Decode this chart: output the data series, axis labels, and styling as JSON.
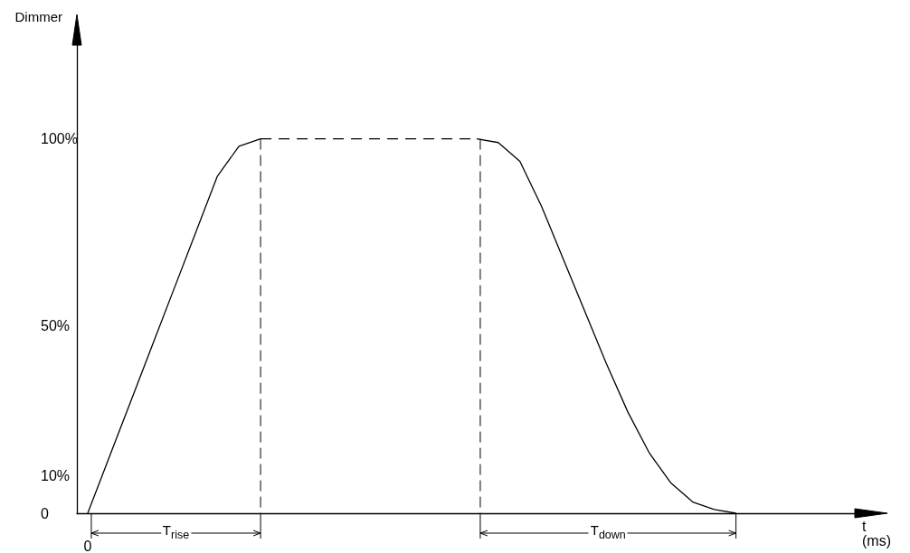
{
  "chart_data": {
    "type": "line",
    "xlabel": "t\n(ms)",
    "ylabel": "Dimmer",
    "categories": [
      "0",
      null,
      null,
      null,
      null,
      null,
      null,
      null,
      null,
      null,
      null,
      null,
      null,
      null,
      null,
      null,
      null,
      null,
      null,
      null,
      null,
      null,
      null,
      null,
      null,
      null,
      null,
      null,
      null,
      null,
      null,
      null,
      null,
      null,
      null,
      null
    ],
    "series": [
      {
        "color": "#000000",
        "line_style": "solid",
        "values": [
          0,
          15,
          30,
          45,
          60,
          75,
          90,
          98,
          100,
          null,
          null,
          null,
          null,
          null,
          null,
          null,
          null,
          null,
          null,
          null,
          null,
          null,
          null,
          null,
          null,
          null,
          null,
          null,
          null,
          null,
          null,
          null,
          null,
          null,
          null,
          null
        ]
      },
      {
        "color": "#000000",
        "line_style": "dashed",
        "values": [
          null,
          null,
          null,
          null,
          null,
          null,
          null,
          null,
          100,
          100,
          100,
          100,
          100,
          100,
          100,
          100,
          100,
          100,
          100,
          null,
          null,
          null,
          null,
          null,
          null,
          null,
          null,
          null,
          null,
          null,
          null,
          null,
          null,
          null,
          null,
          null
        ]
      },
      {
        "color": "#000000",
        "line_style": "solid",
        "values": [
          null,
          null,
          null,
          null,
          null,
          null,
          null,
          null,
          null,
          null,
          null,
          null,
          null,
          null,
          null,
          null,
          null,
          null,
          100,
          99,
          94,
          82,
          68,
          54,
          40,
          27,
          16,
          8,
          3,
          1,
          0,
          null,
          null,
          null,
          null,
          null
        ]
      }
    ],
    "ylim": [
      0,
      125
    ],
    "yticks": [
      0,
      {
        "value": 10,
        "label": "10%"
      },
      {
        "value": 50,
        "label": "50%"
      },
      {
        "value": 100,
        "label": "100%"
      }
    ],
    "annotations": [
      "T$_{rise}$",
      "T$_{down}$"
    ],
    "grid": false,
    "marker": "none"
  }
}
